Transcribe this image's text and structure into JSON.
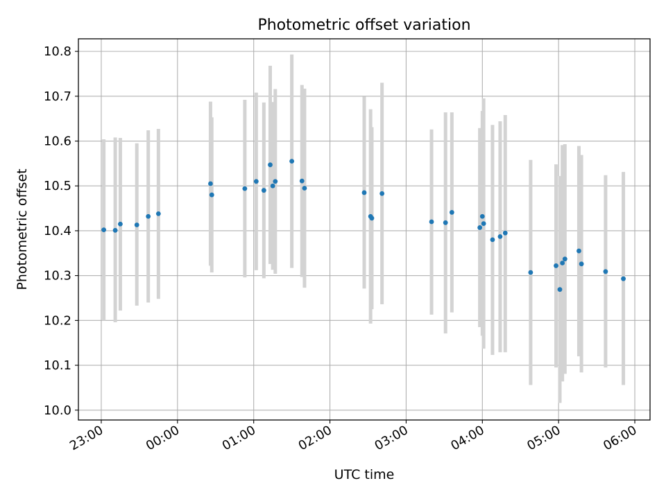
{
  "chart_data": {
    "type": "scatter",
    "title": "Photometric offset variation",
    "xlabel": "UTC time",
    "ylabel": "Photometric offset",
    "x_unit": "time",
    "xlim": [
      "22:42",
      "06:12"
    ],
    "ylim": [
      9.978,
      10.828
    ],
    "x_ticks": [
      "23:00",
      "00:00",
      "01:00",
      "02:00",
      "03:00",
      "04:00",
      "05:00",
      "06:00"
    ],
    "y_ticks": [
      "10.0",
      "10.1",
      "10.2",
      "10.3",
      "10.4",
      "10.5",
      "10.6",
      "10.7",
      "10.8"
    ],
    "grid": true,
    "errorbar_color": "#d3d3d3",
    "marker_color": "#1f77b4",
    "series": [
      {
        "points": [
          {
            "x": "23:02",
            "y": 10.402,
            "err_low": 10.2,
            "err_high": 10.604
          },
          {
            "x": "23:11",
            "y": 10.401,
            "err_low": 10.196,
            "err_high": 10.608
          },
          {
            "x": "23:15",
            "y": 10.415,
            "err_low": 10.222,
            "err_high": 10.607
          },
          {
            "x": "23:28",
            "y": 10.413,
            "err_low": 10.233,
            "err_high": 10.595
          },
          {
            "x": "23:37",
            "y": 10.432,
            "err_low": 10.24,
            "err_high": 10.624
          },
          {
            "x": "23:45",
            "y": 10.438,
            "err_low": 10.248,
            "err_high": 10.627
          },
          {
            "x": "00:26",
            "y": 10.505,
            "err_low": 10.322,
            "err_high": 10.688
          },
          {
            "x": "00:27",
            "y": 10.48,
            "err_low": 10.307,
            "err_high": 10.653
          },
          {
            "x": "00:53",
            "y": 10.494,
            "err_low": 10.296,
            "err_high": 10.692
          },
          {
            "x": "01:02",
            "y": 10.51,
            "err_low": 10.312,
            "err_high": 10.708
          },
          {
            "x": "01:08",
            "y": 10.49,
            "err_low": 10.294,
            "err_high": 10.686
          },
          {
            "x": "01:13",
            "y": 10.547,
            "err_low": 10.326,
            "err_high": 10.768
          },
          {
            "x": "01:15",
            "y": 10.5,
            "err_low": 10.313,
            "err_high": 10.687
          },
          {
            "x": "01:17",
            "y": 10.51,
            "err_low": 10.304,
            "err_high": 10.716
          },
          {
            "x": "01:30",
            "y": 10.555,
            "err_low": 10.317,
            "err_high": 10.793
          },
          {
            "x": "01:38",
            "y": 10.511,
            "err_low": 10.297,
            "err_high": 10.725
          },
          {
            "x": "01:40",
            "y": 10.495,
            "err_low": 10.273,
            "err_high": 10.717
          },
          {
            "x": "02:27",
            "y": 10.485,
            "err_low": 10.271,
            "err_high": 10.699
          },
          {
            "x": "02:32",
            "y": 10.432,
            "err_low": 10.193,
            "err_high": 10.671
          },
          {
            "x": "02:33",
            "y": 10.428,
            "err_low": 10.225,
            "err_high": 10.631
          },
          {
            "x": "02:41",
            "y": 10.483,
            "err_low": 10.236,
            "err_high": 10.73
          },
          {
            "x": "03:20",
            "y": 10.42,
            "err_low": 10.213,
            "err_high": 10.626
          },
          {
            "x": "03:31",
            "y": 10.418,
            "err_low": 10.171,
            "err_high": 10.664
          },
          {
            "x": "03:36",
            "y": 10.441,
            "err_low": 10.218,
            "err_high": 10.664
          },
          {
            "x": "03:58",
            "y": 10.407,
            "err_low": 10.185,
            "err_high": 10.629
          },
          {
            "x": "04:00",
            "y": 10.432,
            "err_low": 10.166,
            "err_high": 10.667
          },
          {
            "x": "04:01",
            "y": 10.416,
            "err_low": 10.137,
            "err_high": 10.695
          },
          {
            "x": "04:08",
            "y": 10.38,
            "err_low": 10.123,
            "err_high": 10.636
          },
          {
            "x": "04:14",
            "y": 10.387,
            "err_low": 10.129,
            "err_high": 10.644
          },
          {
            "x": "04:18",
            "y": 10.395,
            "err_low": 10.129,
            "err_high": 10.658
          },
          {
            "x": "04:38",
            "y": 10.307,
            "err_low": 10.056,
            "err_high": 10.558
          },
          {
            "x": "04:58",
            "y": 10.322,
            "err_low": 10.095,
            "err_high": 10.548
          },
          {
            "x": "05:01",
            "y": 10.269,
            "err_low": 10.016,
            "err_high": 10.522
          },
          {
            "x": "05:03",
            "y": 10.328,
            "err_low": 10.064,
            "err_high": 10.591
          },
          {
            "x": "05:05",
            "y": 10.337,
            "err_low": 10.081,
            "err_high": 10.593
          },
          {
            "x": "05:16",
            "y": 10.355,
            "err_low": 10.12,
            "err_high": 10.589
          },
          {
            "x": "05:18",
            "y": 10.326,
            "err_low": 10.084,
            "err_high": 10.569
          },
          {
            "x": "05:37",
            "y": 10.309,
            "err_low": 10.095,
            "err_high": 10.524
          },
          {
            "x": "05:51",
            "y": 10.293,
            "err_low": 10.056,
            "err_high": 10.531
          }
        ]
      }
    ]
  }
}
